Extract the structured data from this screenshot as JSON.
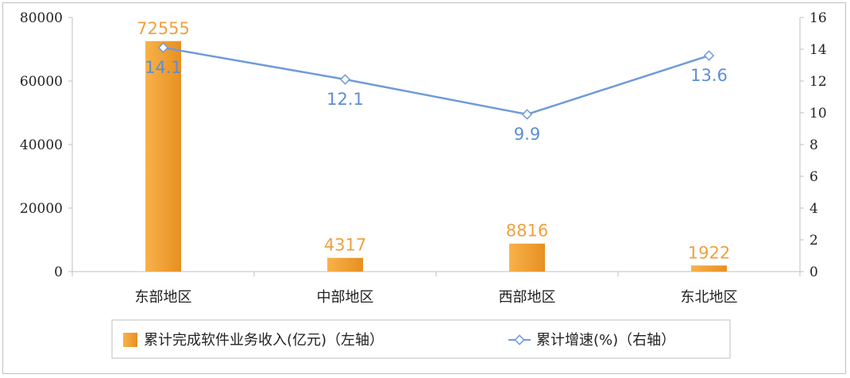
{
  "chart_data": {
    "type": "bar",
    "categories": [
      "东部地区",
      "中部地区",
      "西部地区",
      "东北地区"
    ],
    "series": [
      {
        "name": "累计完成软件业务收入(亿元)（左轴）",
        "type": "bar",
        "axis": "left",
        "values": [
          72555,
          4317,
          8816,
          1922
        ],
        "labels": [
          "72555",
          "4317",
          "8816",
          "1922"
        ]
      },
      {
        "name": "累计增速(%)（右轴）",
        "type": "line",
        "axis": "right",
        "values": [
          14.1,
          12.1,
          9.9,
          13.6
        ],
        "labels": [
          "14.1",
          "12.1",
          "9.9",
          "13.6"
        ]
      }
    ],
    "y_left": {
      "ylim": [
        0,
        80000
      ],
      "ticks": [
        "0",
        "20000",
        "40000",
        "60000",
        "80000"
      ]
    },
    "y_right": {
      "ylim": [
        0,
        16
      ],
      "ticks": [
        "0",
        "2",
        "4",
        "6",
        "8",
        "10",
        "12",
        "14",
        "16"
      ]
    },
    "grid": false,
    "legend_position": "bottom",
    "colors": {
      "bar": "#f2a33a",
      "bar_dark": "#e08a1e",
      "line": "#6f9bd8",
      "bar_label": "#f0a040",
      "line_label": "#5b8ed6"
    }
  }
}
